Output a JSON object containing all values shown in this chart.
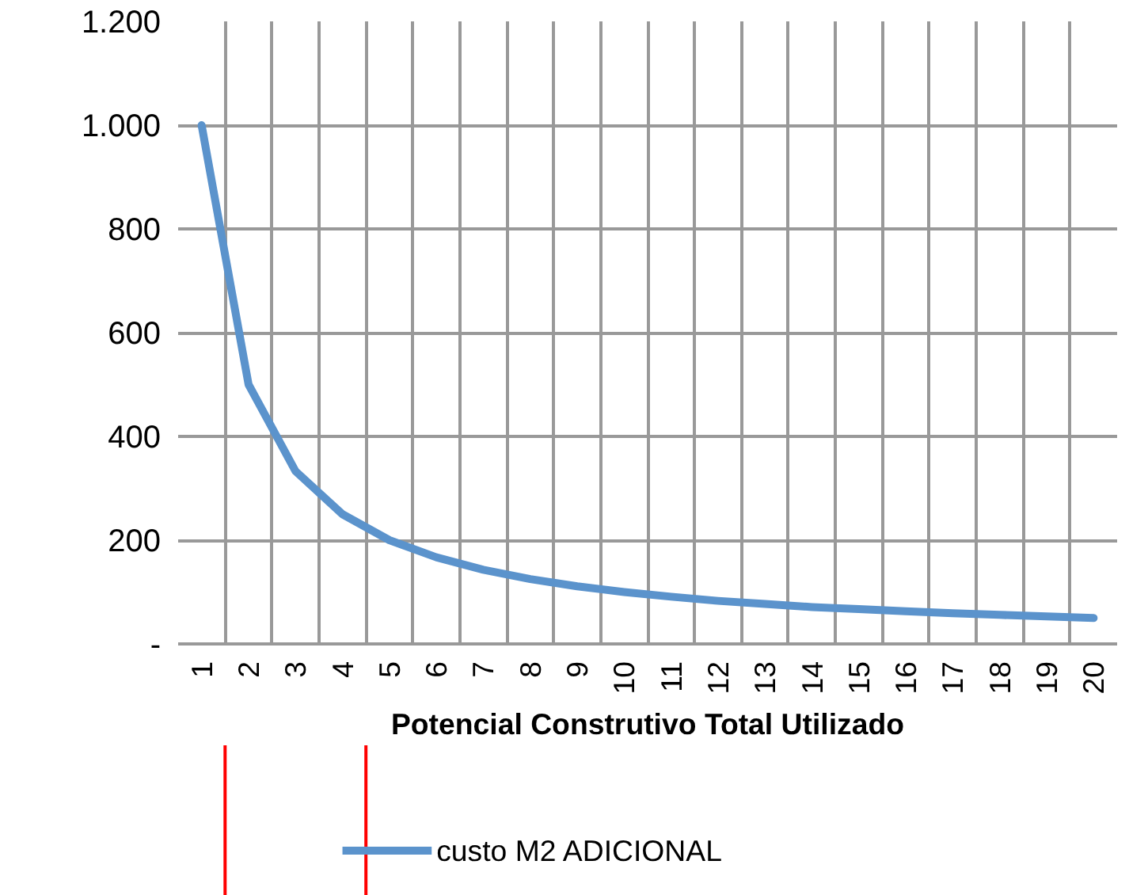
{
  "chart_data": {
    "type": "line",
    "xlabel": "Potencial Construtivo Total Utilizado",
    "categories": [
      "1",
      "2",
      "3",
      "4",
      "5",
      "6",
      "7",
      "8",
      "9",
      "10",
      "11",
      "12",
      "13",
      "14",
      "15",
      "16",
      "17",
      "18",
      "19",
      "20"
    ],
    "series": [
      {
        "name": "custo M2 ADICIONAL",
        "color": "#5b93cc",
        "values": [
          1000,
          500,
          333,
          250,
          200,
          167,
          143,
          125,
          111,
          100,
          91,
          83,
          77,
          71,
          67,
          63,
          59,
          56,
          53,
          50
        ]
      }
    ],
    "ylim": [
      0,
      1200
    ],
    "yticks": [
      {
        "value": 0,
        "label": "-"
      },
      200,
      400,
      600,
      800,
      {
        "value": 1000,
        "label": "1.000"
      },
      {
        "value": 1200,
        "label": "1.200"
      }
    ],
    "grid": true,
    "legend": "bottom",
    "marker": "none",
    "line_style": "solid"
  }
}
